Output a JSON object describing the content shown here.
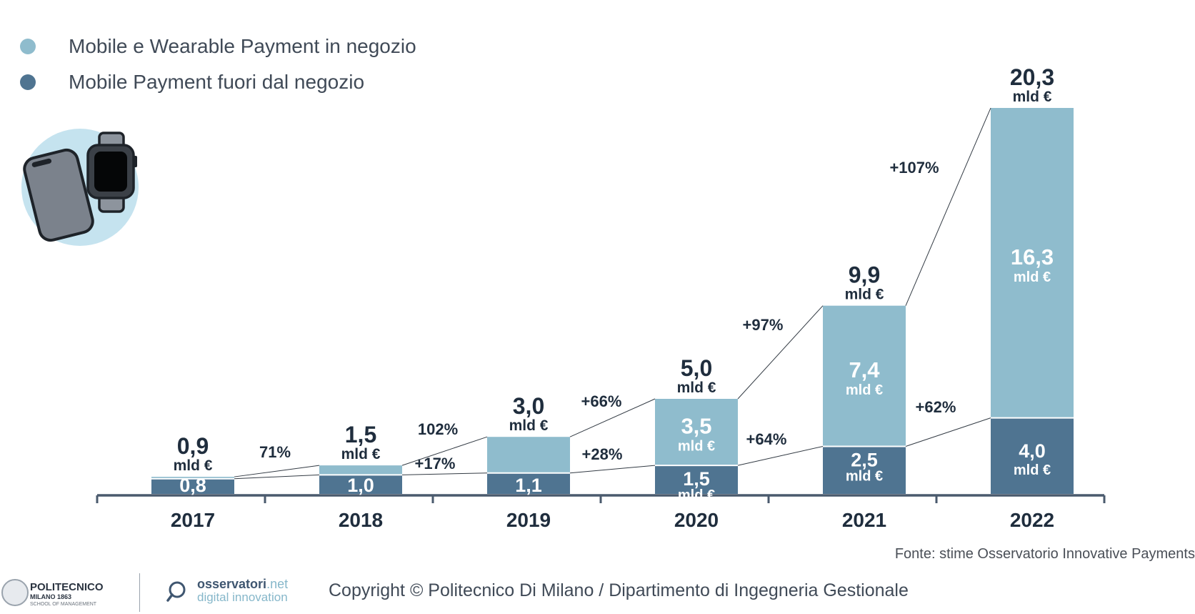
{
  "legend": [
    {
      "label": "Mobile e Wearable Payment in negozio",
      "color": "#8fbccd"
    },
    {
      "label": "Mobile Payment fuori dal negozio",
      "color": "#4f7491"
    }
  ],
  "source": "Fonte: stime Osservatorio Innovative Payments",
  "footer": {
    "polimi_name": "POLITECNICO",
    "polimi_sub": "MILANO 1863",
    "polimi_school": "SCHOOL OF MANAGEMENT",
    "osservatori_name": "osservatori",
    "osservatori_suffix": ".net",
    "osservatori_sub": "digital innovation",
    "copyright": "Copyright © Politecnico Di Milano / Dipartimento di Ingegneria Gestionale"
  },
  "chart_data": {
    "type": "bar",
    "stacked": true,
    "categories": [
      "2017",
      "2018",
      "2019",
      "2020",
      "2021",
      "2022"
    ],
    "series": [
      {
        "name": "Mobile Payment fuori dal negozio",
        "values": [
          0.8,
          1.0,
          1.1,
          1.5,
          2.5,
          4.0
        ],
        "labels": [
          "0,8",
          "1,0",
          "1,1",
          "1,5",
          "2,5",
          "4,0"
        ],
        "unit_shown": [
          false,
          false,
          false,
          true,
          true,
          true
        ],
        "color": "#4f7491"
      },
      {
        "name": "Mobile e Wearable Payment in negozio",
        "values": [
          0.1,
          0.5,
          1.9,
          3.5,
          7.4,
          16.3
        ],
        "labels": [
          "",
          "",
          "",
          "3,5",
          "7,4",
          "16,3"
        ],
        "unit_shown": [
          false,
          false,
          false,
          true,
          true,
          true
        ],
        "color": "#8fbccd"
      }
    ],
    "totals": [
      "0,9",
      "1,5",
      "3,0",
      "5,0",
      "9,9",
      "20,3"
    ],
    "unit": "mld €",
    "growth_total": [
      "71%",
      "102%",
      "+66%",
      "+97%",
      "+107%"
    ],
    "growth_out_of_store": [
      "",
      "+17%",
      "+28%",
      "+64%",
      "+62%"
    ],
    "colors": {
      "in_store": "#8fbccd",
      "out_of_store": "#4f7491",
      "axis": "#4a5a6d",
      "text": "#1f2d3d"
    }
  }
}
